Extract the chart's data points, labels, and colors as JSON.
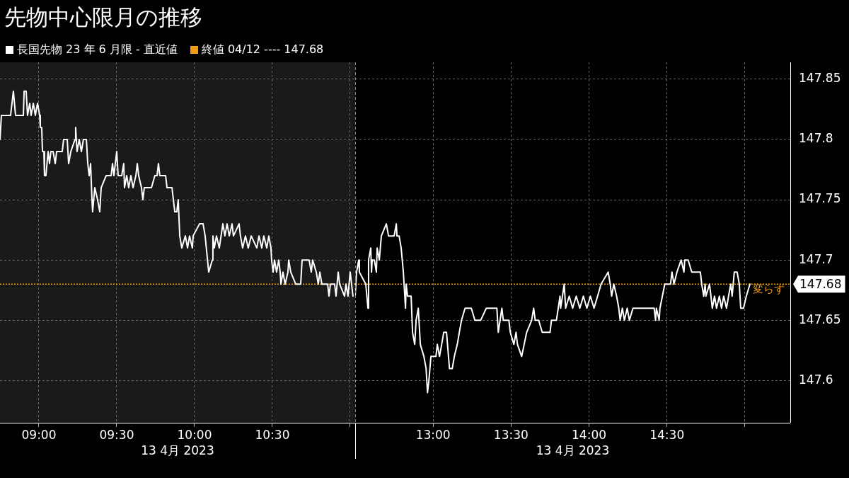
{
  "chart_data": [
    {
      "type": "line",
      "title": "先物中心限月の推移",
      "xlabel": "13 4月 2023",
      "legend": "top left",
      "grid": true,
      "tick_labels": "x",
      "xlim": [
        8.75,
        11.032
      ],
      "xticks": [
        {
          "value": 9,
          "label": "09:00"
        },
        {
          "value": 9.5,
          "label": "09:30"
        },
        {
          "value": 10,
          "label": "10:00"
        },
        {
          "value": 10.5,
          "label": "10:30"
        },
        {
          "value": 11,
          "label": null
        }
      ],
      "ylim": [
        147.565,
        147.864
      ],
      "yticks": [
        147.6,
        147.65,
        147.7,
        147.75,
        147.8,
        147.85
      ],
      "ref_lines": [
        {
          "axis": "y",
          "value": 147.68,
          "label": "終値 04/12 ---- 147.68",
          "color": "#f39a10",
          "line_style": "dotted"
        }
      ],
      "series": [
        {
          "name": "長国先物 23 年 6 月限 - 直近値",
          "color": "#ffffff",
          "x": [
            8.75,
            8.759,
            8.818,
            8.827,
            8.836,
            8.85,
            8.9,
            8.905,
            8.918,
            8.927,
            8.941,
            8.95,
            8.964,
            8.977,
            8.991,
            9.005,
            9.009,
            9.018,
            9.023,
            9.032,
            9.036,
            9.045,
            9.059,
            9.068,
            9.077,
            9.091,
            9.105,
            9.114,
            9.15,
            9.159,
            9.182,
            9.191,
            9.205,
            9.232,
            9.236,
            9.245,
            9.259,
            9.273,
            9.286,
            9.305,
            9.314,
            9.323,
            9.332,
            9.341,
            9.345,
            9.359,
            9.377,
            9.391,
            9.4,
            9.432,
            9.464,
            9.473,
            9.482,
            9.5,
            9.509,
            9.532,
            9.545,
            9.55,
            9.564,
            9.577,
            9.591,
            9.605,
            9.623,
            9.632,
            9.641,
            9.659,
            9.668,
            9.677,
            9.723,
            9.745,
            9.759,
            9.768,
            9.777,
            9.814,
            9.823,
            9.855,
            9.864,
            9.873,
            9.886,
            9.895,
            9.905,
            9.918,
            9.941,
            9.955,
            9.968,
            9.986,
            9.991,
            10.032,
            10.055,
            10.068,
            10.091,
            10.114,
            10.118,
            10.127,
            10.141,
            10.159,
            10.182,
            10.195,
            10.209,
            10.223,
            10.241,
            10.25,
            10.286,
            10.295,
            10.309,
            10.327,
            10.345,
            10.364,
            10.4,
            10.414,
            10.432,
            10.445,
            10.464,
            10.477,
            10.491,
            10.495,
            10.505,
            10.514,
            10.527,
            10.541,
            10.55,
            10.555,
            10.568,
            10.582,
            10.6,
            10.605,
            10.618,
            10.65,
            10.682,
            10.691,
            10.736,
            10.75,
            10.759,
            10.782,
            10.795,
            10.805,
            10.818,
            10.855,
            10.864,
            10.873,
            10.9,
            10.909,
            10.923,
            10.932,
            10.964,
            10.973,
            10.986,
            11.0,
            11.009,
            11.018
          ],
          "values": [
            147.8,
            147.82,
            147.82,
            147.83,
            147.84,
            147.82,
            147.82,
            147.84,
            147.84,
            147.82,
            147.83,
            147.82,
            147.83,
            147.82,
            147.83,
            147.82,
            147.81,
            147.81,
            147.79,
            147.79,
            147.77,
            147.77,
            147.79,
            147.78,
            147.79,
            147.79,
            147.78,
            147.79,
            147.79,
            147.8,
            147.8,
            147.78,
            147.79,
            147.8,
            147.81,
            147.79,
            147.8,
            147.79,
            147.8,
            147.8,
            147.78,
            147.77,
            147.78,
            147.75,
            147.74,
            147.76,
            147.75,
            147.74,
            147.76,
            147.77,
            147.77,
            147.78,
            147.77,
            147.79,
            147.77,
            147.77,
            147.78,
            147.76,
            147.77,
            147.76,
            147.77,
            147.76,
            147.77,
            147.78,
            147.77,
            147.76,
            147.75,
            147.76,
            147.76,
            147.77,
            147.77,
            147.78,
            147.77,
            147.77,
            147.76,
            147.76,
            147.75,
            147.74,
            147.74,
            147.75,
            147.72,
            147.71,
            147.72,
            147.71,
            147.72,
            147.71,
            147.72,
            147.73,
            147.73,
            147.72,
            147.69,
            147.7,
            147.72,
            147.71,
            147.72,
            147.71,
            147.73,
            147.72,
            147.73,
            147.72,
            147.73,
            147.72,
            147.73,
            147.72,
            147.71,
            147.72,
            147.71,
            147.72,
            147.71,
            147.72,
            147.71,
            147.72,
            147.71,
            147.72,
            147.71,
            147.7,
            147.69,
            147.7,
            147.69,
            147.7,
            147.69,
            147.68,
            147.69,
            147.68,
            147.69,
            147.7,
            147.69,
            147.68,
            147.68,
            147.7,
            147.7,
            147.69,
            147.7,
            147.69,
            147.68,
            147.69,
            147.68,
            147.68,
            147.67,
            147.68,
            147.68,
            147.67,
            147.69,
            147.68,
            147.67,
            147.68,
            147.67,
            147.69,
            147.68,
            147.67
          ]
        }
      ]
    },
    {
      "type": "line",
      "xlabel": "13 4月 2023",
      "grid": true,
      "xlim": [
        12.5,
        15.291
      ],
      "xticks": [
        {
          "value": 13,
          "label": "13:00"
        },
        {
          "value": 13.5,
          "label": "13:30"
        },
        {
          "value": 14,
          "label": "14:00"
        },
        {
          "value": 14.5,
          "label": "14:30"
        },
        {
          "value": 15,
          "label": null
        }
      ],
      "ylim": [
        147.565,
        147.864
      ],
      "yticks": [
        147.6,
        147.65,
        147.7,
        147.75,
        147.8,
        147.85
      ],
      "ref_lines": [
        {
          "axis": "y",
          "value": 147.68,
          "color": "#f39a10",
          "line_style": "dotted"
        }
      ],
      "annotations": [
        {
          "text": "変らず",
          "x": 15.041,
          "y": 147.68
        },
        "147.68"
      ],
      "series": [
        {
          "color": "#ffffff",
          "x": [
            12.5,
            12.509,
            12.523,
            12.527,
            12.568,
            12.582,
            12.586,
            12.6,
            12.605,
            12.609,
            12.623,
            12.636,
            12.641,
            12.655,
            12.668,
            12.7,
            12.714,
            12.75,
            12.764,
            12.768,
            12.782,
            12.795,
            12.809,
            12.823,
            12.827,
            12.836,
            12.859,
            12.868,
            12.882,
            12.891,
            12.905,
            12.918,
            12.941,
            12.955,
            12.964,
            12.973,
            12.986,
            13.018,
            13.027,
            13.041,
            13.055,
            13.068,
            13.086,
            13.105,
            13.123,
            13.136,
            13.155,
            13.168,
            13.182,
            13.205,
            13.245,
            13.268,
            13.305,
            13.341,
            13.409,
            13.418,
            13.441,
            13.45,
            13.486,
            13.495,
            13.518,
            13.532,
            13.541,
            13.568,
            13.6,
            13.632,
            13.645,
            13.655,
            13.677,
            13.7,
            13.75,
            13.759,
            13.791,
            13.814,
            13.818,
            13.841,
            13.85,
            13.873,
            13.895,
            13.918,
            13.941,
            13.964,
            13.986,
            14.009,
            14.032,
            14.055,
            14.077,
            14.123,
            14.136,
            14.145,
            14.159,
            14.177,
            14.191,
            14.2,
            14.214,
            14.227,
            14.245,
            14.259,
            14.282,
            14.418,
            14.427,
            14.432,
            14.45,
            14.455,
            14.486,
            14.523,
            14.532,
            14.545,
            14.564,
            14.591,
            14.609,
            14.614,
            14.636,
            14.659,
            14.714,
            14.723,
            14.736,
            14.745,
            14.75,
            14.773,
            14.791,
            14.805,
            14.818,
            14.836,
            14.85,
            14.864,
            14.882,
            14.895,
            14.909,
            14.918,
            14.932,
            14.95,
            14.964,
            14.973,
            14.991,
            15.009,
            15.032
          ],
          "values": [
            147.67,
            147.69,
            147.7,
            147.69,
            147.68,
            147.66,
            147.7,
            147.71,
            147.69,
            147.7,
            147.7,
            147.69,
            147.71,
            147.7,
            147.72,
            147.73,
            147.72,
            147.72,
            147.73,
            147.72,
            147.72,
            147.71,
            147.69,
            147.66,
            147.68,
            147.67,
            147.67,
            147.64,
            147.63,
            147.65,
            147.66,
            147.63,
            147.62,
            147.61,
            147.59,
            147.6,
            147.62,
            147.62,
            147.63,
            147.62,
            147.63,
            147.64,
            147.64,
            147.61,
            147.61,
            147.62,
            147.63,
            147.64,
            147.65,
            147.66,
            147.66,
            147.65,
            147.65,
            147.66,
            147.66,
            147.64,
            147.66,
            147.65,
            147.65,
            147.64,
            147.63,
            147.64,
            147.63,
            147.62,
            147.64,
            147.65,
            147.66,
            147.65,
            147.65,
            147.64,
            147.64,
            147.65,
            147.65,
            147.67,
            147.66,
            147.68,
            147.66,
            147.67,
            147.66,
            147.67,
            147.66,
            147.67,
            147.66,
            147.67,
            147.66,
            147.67,
            147.68,
            147.69,
            147.68,
            147.67,
            147.68,
            147.67,
            147.66,
            147.65,
            147.66,
            147.65,
            147.66,
            147.65,
            147.66,
            147.66,
            147.65,
            147.66,
            147.65,
            147.66,
            147.68,
            147.68,
            147.69,
            147.68,
            147.69,
            147.7,
            147.69,
            147.7,
            147.7,
            147.69,
            147.69,
            147.68,
            147.67,
            147.68,
            147.67,
            147.68,
            147.66,
            147.67,
            147.66,
            147.67,
            147.66,
            147.67,
            147.66,
            147.67,
            147.68,
            147.67,
            147.69,
            147.69,
            147.68,
            147.66,
            147.66,
            147.67,
            147.68
          ]
        }
      ]
    }
  ]
}
